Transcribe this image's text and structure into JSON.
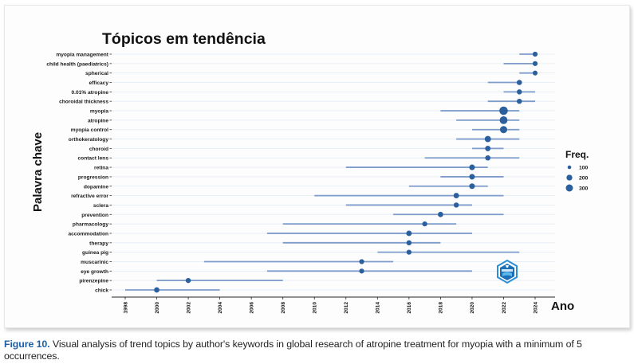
{
  "caption": {
    "label": "Figure 10.",
    "text": " Visual analysis of trend topics by author's keywords in global research of atropine treatment for myopia with a minimum of 5 occurrences."
  },
  "logo": {
    "icon": "hexagon-shield-logo-icon"
  },
  "colors": {
    "dot": "#2b5f9e",
    "segment": "#7d9ccc",
    "grid": "#e8eef6",
    "accent": "#1a5fa8"
  },
  "chart_data": {
    "type": "scatter",
    "subtype": "trend-topics-range",
    "title": "Tópicos em tendência",
    "xlabel": "Ano",
    "ylabel": "Palavra chave",
    "xlim": [
      1997.6,
      2025.2
    ],
    "xticks": [
      1998,
      2000,
      2002,
      2004,
      2006,
      2008,
      2010,
      2012,
      2014,
      2016,
      2018,
      2020,
      2022,
      2024
    ],
    "grid": true,
    "legend": {
      "title": "Freq.",
      "position": "right",
      "entries": [
        100,
        200,
        300
      ]
    },
    "topics": [
      {
        "term": "myopia management",
        "q1": 2023,
        "median": 2024,
        "q3": 2024,
        "freq": 20
      },
      {
        "term": "child health (paediatrics)",
        "q1": 2022,
        "median": 2024,
        "q3": 2024,
        "freq": 20
      },
      {
        "term": "spherical",
        "q1": 2023,
        "median": 2024,
        "q3": 2024,
        "freq": 15
      },
      {
        "term": "efficacy",
        "q1": 2021,
        "median": 2023,
        "q3": 2023,
        "freq": 30
      },
      {
        "term": "0.01% atropine",
        "q1": 2022,
        "median": 2023,
        "q3": 2024,
        "freq": 25
      },
      {
        "term": "choroidal thickness",
        "q1": 2021,
        "median": 2023,
        "q3": 2024,
        "freq": 25
      },
      {
        "term": "myopia",
        "q1": 2018,
        "median": 2022,
        "q3": 2023,
        "freq": 320
      },
      {
        "term": "atropine",
        "q1": 2019,
        "median": 2022,
        "q3": 2023,
        "freq": 240
      },
      {
        "term": "myopia control",
        "q1": 2020,
        "median": 2022,
        "q3": 2023,
        "freq": 170
      },
      {
        "term": "orthokeratology",
        "q1": 2019,
        "median": 2021,
        "q3": 2023,
        "freq": 90
      },
      {
        "term": "choroid",
        "q1": 2020,
        "median": 2021,
        "q3": 2022,
        "freq": 40
      },
      {
        "term": "contact lens",
        "q1": 2017,
        "median": 2021,
        "q3": 2023,
        "freq": 30
      },
      {
        "term": "retina",
        "q1": 2012,
        "median": 2020,
        "q3": 2021,
        "freq": 50
      },
      {
        "term": "progression",
        "q1": 2018,
        "median": 2020,
        "q3": 2022,
        "freq": 50
      },
      {
        "term": "dopamine",
        "q1": 2016,
        "median": 2020,
        "q3": 2021,
        "freq": 50
      },
      {
        "term": "refractive error",
        "q1": 2010,
        "median": 2019,
        "q3": 2022,
        "freq": 40
      },
      {
        "term": "sclera",
        "q1": 2012,
        "median": 2019,
        "q3": 2020,
        "freq": 25
      },
      {
        "term": "prevention",
        "q1": 2015,
        "median": 2018,
        "q3": 2022,
        "freq": 35
      },
      {
        "term": "pharmacology",
        "q1": 2008,
        "median": 2017,
        "q3": 2019,
        "freq": 20
      },
      {
        "term": "accommodation",
        "q1": 2007,
        "median": 2016,
        "q3": 2020,
        "freq": 40
      },
      {
        "term": "therapy",
        "q1": 2008,
        "median": 2016,
        "q3": 2018,
        "freq": 25
      },
      {
        "term": "guinea pig",
        "q1": 2014,
        "median": 2016,
        "q3": 2023,
        "freq": 20
      },
      {
        "term": "muscarinic",
        "q1": 2003,
        "median": 2013,
        "q3": 2015,
        "freq": 20
      },
      {
        "term": "eye growth",
        "q1": 2007,
        "median": 2013,
        "q3": 2020,
        "freq": 20
      },
      {
        "term": "pirenzepine",
        "q1": 2000,
        "median": 2002,
        "q3": 2008,
        "freq": 25
      },
      {
        "term": "chick",
        "q1": 1998,
        "median": 2000,
        "q3": 2004,
        "freq": 35
      }
    ]
  }
}
